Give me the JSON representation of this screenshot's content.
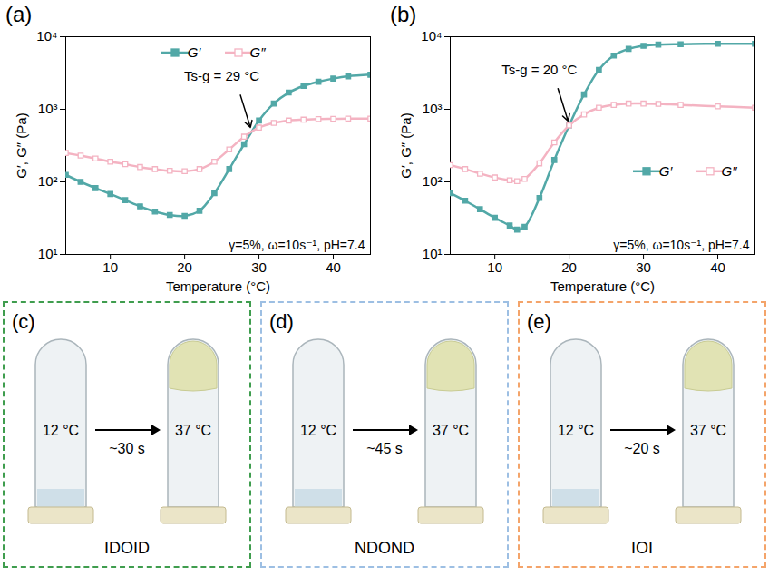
{
  "chart_data": [
    {
      "type": "line",
      "panel": "(a)",
      "x_label": "Temperature (°C)",
      "y_label": "G′, G″ (Pa)",
      "log": "y",
      "xlim": [
        4,
        45
      ],
      "xticks": [
        10,
        20,
        30,
        40
      ],
      "ylim": [
        10,
        10000
      ],
      "yticks": [
        {
          "value": 10,
          "label": "10¹"
        },
        {
          "value": 100,
          "label": "10²"
        },
        {
          "value": 1000,
          "label": "10³"
        },
        {
          "value": 10000,
          "label": "10⁴"
        }
      ],
      "legend": "top",
      "annotation": {
        "text": "Ts-g = 29 °C",
        "x": 29,
        "y": 490
      },
      "conditions": "γ=5%, ω=10s⁻¹, pH=7.4",
      "x": [
        4,
        6,
        8,
        10,
        12,
        14,
        16,
        18,
        20,
        22,
        24,
        26,
        28,
        30,
        32,
        34,
        36,
        38,
        40,
        42,
        45
      ],
      "series": [
        {
          "name": "G′",
          "color": "#52a8a7",
          "marker": "square",
          "values": [
            125,
            100,
            82,
            68,
            56,
            46,
            39,
            35,
            34,
            40,
            70,
            150,
            330,
            700,
            1200,
            1700,
            2100,
            2400,
            2650,
            2850,
            3000
          ]
        },
        {
          "name": "G″",
          "color": "#f4b3c2",
          "marker": "open square",
          "values": [
            250,
            230,
            210,
            190,
            175,
            160,
            150,
            142,
            140,
            150,
            190,
            280,
            420,
            560,
            650,
            700,
            720,
            735,
            740,
            745,
            745
          ]
        }
      ]
    },
    {
      "type": "line",
      "panel": "(b)",
      "x_label": "Temperature (°C)",
      "y_label": "G′, G″ (Pa)",
      "log": "y",
      "xlim": [
        4,
        45
      ],
      "xticks": [
        10,
        20,
        30,
        40
      ],
      "ylim": [
        10,
        10000
      ],
      "yticks": [
        {
          "value": 10,
          "label": "10¹"
        },
        {
          "value": 100,
          "label": "10²"
        },
        {
          "value": 1000,
          "label": "10³"
        },
        {
          "value": 10000,
          "label": "10⁴"
        }
      ],
      "legend": "right",
      "annotation": {
        "text": "Ts-g = 20 °C",
        "x": 20,
        "y": 600
      },
      "conditions": "γ=5%, ω=10s⁻¹, pH=7.4",
      "x": [
        4,
        6,
        8,
        10,
        12,
        13,
        14,
        16,
        18,
        20,
        22,
        24,
        26,
        28,
        30,
        32,
        35,
        40,
        45
      ],
      "series": [
        {
          "name": "G′",
          "color": "#52a8a7",
          "marker": "square",
          "values": [
            70,
            55,
            42,
            32,
            25,
            22,
            24,
            60,
            200,
            600,
            1600,
            3500,
            5500,
            6800,
            7500,
            7800,
            7900,
            8000,
            8000
          ]
        },
        {
          "name": "G″",
          "color": "#f4b3c2",
          "marker": "open square",
          "values": [
            170,
            150,
            130,
            115,
            105,
            102,
            110,
            180,
            350,
            600,
            850,
            1050,
            1150,
            1200,
            1200,
            1190,
            1150,
            1100,
            1050
          ]
        }
      ]
    }
  ],
  "photo_panels": [
    {
      "panel": "(c)",
      "name": "IDOID",
      "before": "12 °C",
      "after": "37 °C",
      "time": "~30 s",
      "color": "#3f9d4e"
    },
    {
      "panel": "(d)",
      "name": "NDOND",
      "before": "12 °C",
      "after": "37 °C",
      "time": "~45 s",
      "color": "#9dbfe3"
    },
    {
      "panel": "(e)",
      "name": "IOI",
      "before": "12 °C",
      "after": "37 °C",
      "time": "~20 s",
      "color": "#f4a46a"
    }
  ]
}
